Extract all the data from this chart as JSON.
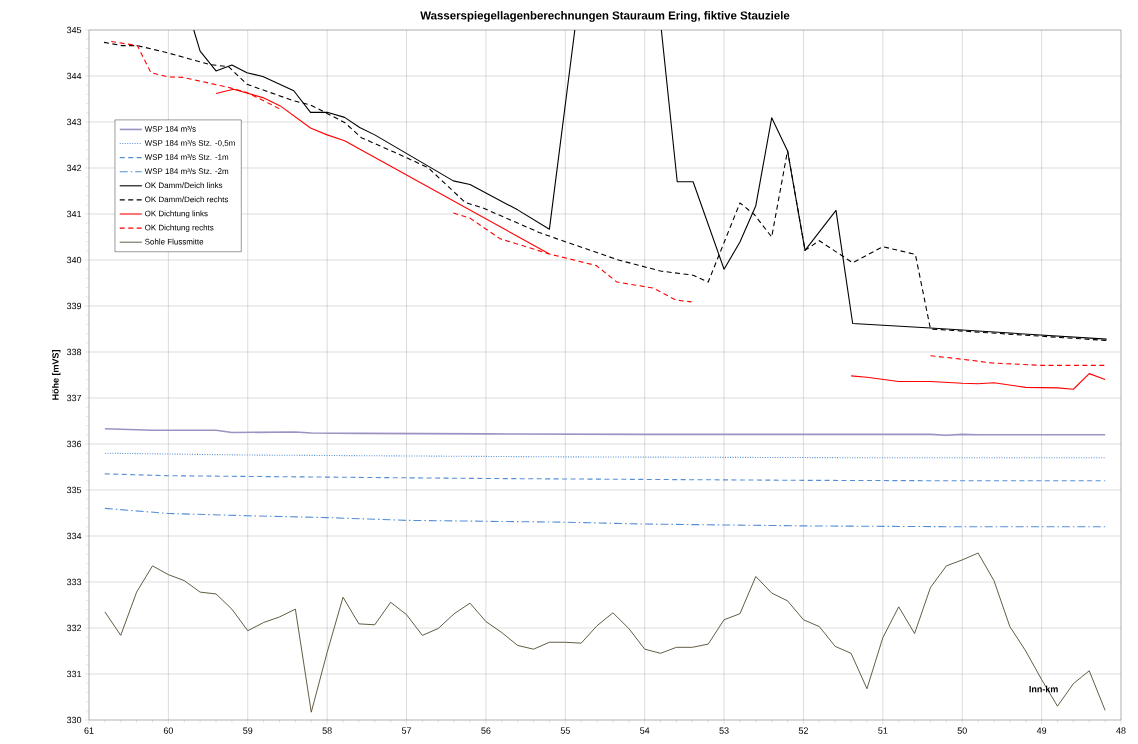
{
  "chart_data": {
    "type": "line",
    "title": "Wasserspiegellagenberechnungen Stauraum Ering, fiktive Stauziele",
    "xlabel": "Inn-km",
    "ylabel": "Höhe [mVS]",
    "xlim": [
      61,
      48
    ],
    "ylim": [
      330,
      345
    ],
    "xticks": [
      61,
      60,
      59,
      58,
      57,
      56,
      55,
      54,
      53,
      52,
      51,
      50,
      49,
      48
    ],
    "yticks": [
      330,
      331,
      332,
      333,
      334,
      335,
      336,
      337,
      338,
      339,
      340,
      341,
      342,
      343,
      344,
      345
    ],
    "grid": true,
    "legend": "top left",
    "series": [
      {
        "name": "WSP 184 m³/s",
        "color": "#9e91c3",
        "line_style": "solid",
        "x": [
          60.8,
          60.2,
          59.4,
          59.2,
          58.4,
          58.2,
          57.6,
          56,
          54,
          52,
          50.4,
          50.2,
          50,
          49.8,
          48.2
        ],
        "values": [
          336.33,
          336.3,
          336.3,
          336.25,
          336.26,
          336.24,
          336.23,
          336.22,
          336.21,
          336.21,
          336.21,
          336.19,
          336.21,
          336.2,
          336.2
        ]
      },
      {
        "name": "WSP 184 m³/s Stz. -0,5m",
        "color": "#558ed5",
        "line_style": "dotted",
        "x": [
          60.8,
          59,
          57,
          55,
          53,
          51,
          48.2
        ],
        "values": [
          335.8,
          335.76,
          335.74,
          335.72,
          335.71,
          335.7,
          335.7
        ]
      },
      {
        "name": "WSP 184 m³/s Stz. -1m",
        "color": "#558ed5",
        "line_style": "dashed",
        "x": [
          60.8,
          60,
          58,
          56,
          54,
          52,
          50,
          48.2
        ],
        "values": [
          335.35,
          335.31,
          335.28,
          335.25,
          335.23,
          335.21,
          335.2,
          335.2
        ]
      },
      {
        "name": "WSP 184 m³/s Stz. -2m",
        "color": "#558ed5",
        "line_style": "dashdot",
        "x": [
          60.8,
          60,
          59,
          58,
          57,
          56,
          55,
          54,
          53,
          52,
          51,
          50,
          48.2
        ],
        "values": [
          334.6,
          334.49,
          334.44,
          334.4,
          334.34,
          334.32,
          334.3,
          334.26,
          334.24,
          334.22,
          334.21,
          334.2,
          334.2
        ]
      },
      {
        "name": "OK Damm/Deich links",
        "color": "#000000",
        "line_style": "solid",
        "x": [
          59.68,
          59.6,
          59.4,
          59.2,
          59.01,
          58.81,
          58.42,
          58.21,
          58.0,
          57.78,
          57.59,
          57.4,
          56.41,
          56.2,
          55.6,
          55.2,
          54.88,
          54.3,
          53.79,
          53.59,
          53.39,
          53.0,
          52.8,
          52.6,
          52.4,
          52.2,
          51.98,
          51.59,
          51.38,
          50.4,
          48.18
        ],
        "values": [
          345,
          344.54,
          344.11,
          344.24,
          344.07,
          343.99,
          343.68,
          343.21,
          343.21,
          343.1,
          342.88,
          342.72,
          341.72,
          341.64,
          341.09,
          340.67,
          345,
          null,
          345,
          341.7,
          341.7,
          339.8,
          340.39,
          341.18,
          343.09,
          342.37,
          340.21,
          341.08,
          338.62,
          338.52,
          338.28
        ]
      },
      {
        "name": "OK Damm/Deich rechts",
        "color": "#000000",
        "line_style": "dashed",
        "x": [
          60.81,
          60.58,
          60.39,
          60.0,
          59.48,
          59.24,
          59.01,
          58.42,
          58.21,
          57.78,
          57.57,
          57.15,
          56.73,
          56.26,
          56.05,
          55.33,
          55.12,
          54.33,
          53.8,
          53.39,
          53.2,
          52.8,
          52.62,
          52.4,
          52.2,
          51.98,
          51.8,
          51.38,
          51.0,
          50.59,
          50.4,
          48.18
        ],
        "values": [
          344.73,
          344.66,
          344.66,
          344.5,
          344.25,
          344.2,
          343.82,
          343.46,
          343.37,
          342.99,
          342.66,
          342.34,
          342.01,
          341.25,
          341.14,
          340.6,
          340.47,
          340.0,
          339.76,
          339.67,
          339.52,
          341.24,
          340.99,
          340.5,
          342.38,
          340.21,
          340.42,
          339.94,
          340.29,
          340.12,
          338.5,
          338.25
        ]
      },
      {
        "name": "OK Dichtung links",
        "color": "#ff0000",
        "line_style": "solid",
        "x": [
          59.4,
          59.18,
          58.81,
          58.59,
          58.21,
          58.0,
          57.78,
          55.2,
          null,
          51.4,
          51.2,
          50.8,
          50.4,
          50.0,
          49.8,
          49.6,
          49.2,
          48.8,
          48.6,
          48.4,
          48.2
        ],
        "values": [
          343.62,
          343.71,
          343.53,
          343.35,
          342.87,
          342.72,
          342.59,
          340.13,
          null,
          337.48,
          337.45,
          337.36,
          337.36,
          337.32,
          337.31,
          337.33,
          337.23,
          337.22,
          337.19,
          337.53,
          337.4
        ]
      },
      {
        "name": "OK Dichtung rechts",
        "color": "#ff0000",
        "line_style": "dashed",
        "x": [
          60.72,
          60.39,
          60.22,
          60.0,
          59.82,
          59.26,
          59.01,
          58.59,
          57.5,
          56.41,
          56.2,
          55.82,
          55.63,
          55.2,
          54.61,
          54.35,
          53.89,
          53.61,
          53.41,
          52.0,
          50.4,
          49.99,
          49.62,
          49.0,
          48.18
        ],
        "values": [
          344.75,
          344.66,
          344.07,
          343.98,
          343.97,
          343.76,
          343.64,
          343.28,
          null,
          341.02,
          340.91,
          340.46,
          340.36,
          340.13,
          339.88,
          339.52,
          339.39,
          339.13,
          339.09,
          null,
          337.92,
          337.84,
          337.76,
          337.71,
          337.71
        ]
      },
      {
        "name": "Sohle Flussmitte",
        "color": "#4f4a2e",
        "line_style": "solid",
        "x": [
          60.8,
          60.6,
          60.4,
          60.2,
          60.0,
          59.8,
          59.6,
          59.4,
          59.2,
          59.0,
          58.8,
          58.6,
          58.4,
          58.2,
          58.0,
          57.8,
          57.6,
          57.4,
          57.2,
          57.0,
          56.8,
          56.6,
          56.4,
          56.2,
          56.0,
          55.8,
          55.6,
          55.4,
          55.2,
          55.0,
          54.8,
          54.6,
          54.4,
          54.2,
          54.0,
          53.8,
          53.6,
          53.4,
          53.2,
          53.0,
          52.8,
          52.6,
          52.4,
          52.2,
          52.0,
          51.8,
          51.6,
          51.4,
          51.2,
          51.0,
          50.8,
          50.6,
          50.4,
          50.2,
          50.0,
          49.8,
          49.6,
          49.4,
          49.2,
          49.0,
          48.8,
          48.6,
          48.4,
          48.2
        ],
        "values": [
          332.35,
          331.84,
          332.78,
          333.35,
          333.16,
          333.03,
          332.78,
          332.74,
          332.41,
          331.94,
          332.12,
          332.24,
          332.41,
          330.17,
          331.47,
          332.67,
          332.09,
          332.07,
          332.56,
          332.29,
          331.84,
          331.99,
          332.31,
          332.54,
          332.14,
          331.9,
          331.62,
          331.54,
          331.69,
          331.69,
          331.67,
          332.05,
          332.33,
          331.99,
          331.54,
          331.45,
          331.58,
          331.58,
          331.65,
          332.18,
          332.31,
          333.12,
          332.76,
          332.59,
          332.18,
          332.03,
          331.6,
          331.45,
          330.68,
          331.79,
          332.46,
          331.88,
          332.88,
          333.35,
          333.48,
          333.63,
          333.03,
          332.03,
          331.5,
          330.88,
          330.3,
          330.79,
          331.07,
          330.21
        ]
      }
    ]
  }
}
